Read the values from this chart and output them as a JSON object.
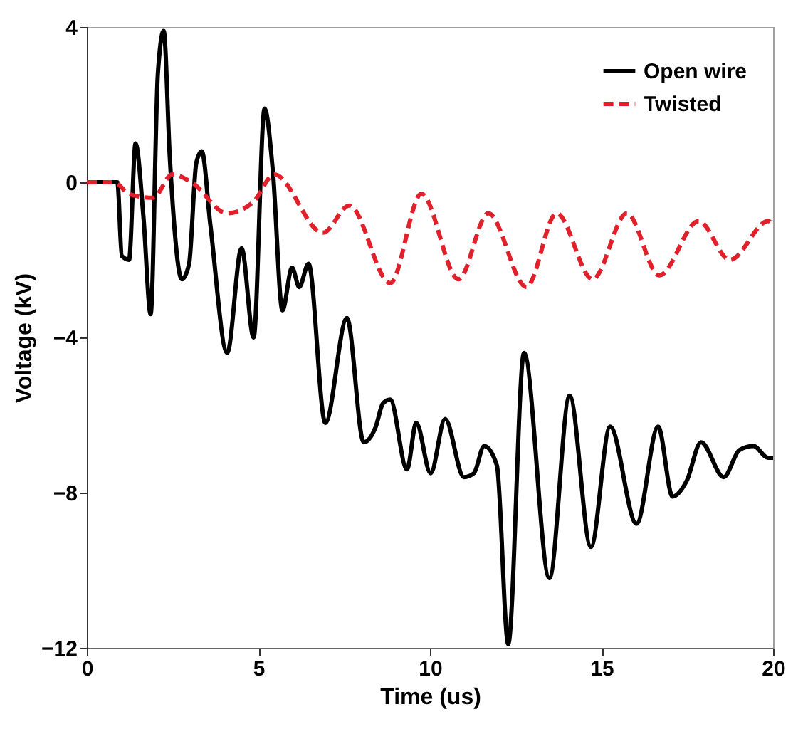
{
  "chart_data": {
    "type": "line",
    "xlabel": "Time (us)",
    "ylabel": "Voltage (kV)",
    "xlim": [
      0,
      20
    ],
    "xticks": [
      0,
      5,
      10,
      15,
      20
    ],
    "ylim": [
      -12,
      4
    ],
    "yticks": [
      -12,
      -8,
      -4,
      0,
      4
    ],
    "grid": false,
    "legend": "top right",
    "series": [
      {
        "name": "Open wire",
        "color": "#000000",
        "line_style": "solid",
        "x": [
          0,
          0.89,
          1.02,
          1.23,
          1.42,
          1.65,
          1.86,
          2.07,
          2.24,
          2.42,
          2.77,
          2.98,
          3.19,
          3.35,
          3.6,
          4.09,
          4.51,
          4.86,
          5.18,
          5.42,
          5.7,
          5.98,
          6.19,
          6.46,
          6.95,
          7.58,
          8.07,
          8.42,
          8.63,
          8.84,
          9.33,
          9.6,
          10.02,
          10.44,
          10.99,
          11.28,
          11.58,
          11.95,
          12.28,
          12.74,
          13.48,
          14.07,
          14.69,
          15.25,
          16.02,
          16.65,
          17.07,
          17.48,
          17.9,
          18.56,
          19.02,
          19.43,
          19.85,
          20
        ],
        "values": [
          0,
          0,
          -1.9,
          -2,
          1,
          -0.9,
          -3.4,
          2.8,
          3.9,
          0.6,
          -2.5,
          -2.1,
          0.5,
          0.8,
          -1.1,
          -4.4,
          -1.7,
          -4,
          1.9,
          0.3,
          -3.3,
          -2.2,
          -2.7,
          -2.1,
          -6.2,
          -3.5,
          -6.7,
          -6.3,
          -5.7,
          -5.6,
          -7.4,
          -6.2,
          -7.5,
          -6.1,
          -7.6,
          -7.5,
          -6.8,
          -7.3,
          -11.9,
          -4.4,
          -10.2,
          -5.5,
          -9.4,
          -6.3,
          -8.8,
          -6.3,
          -8.1,
          -7.7,
          -6.7,
          -7.6,
          -6.9,
          -6.8,
          -7.1,
          -7.1
        ]
      },
      {
        "name": "Twisted",
        "color": "#e0202a",
        "line_style": "dashed",
        "x": [
          0,
          0.8,
          1.23,
          1.93,
          2.49,
          3.05,
          4.09,
          4.86,
          5.46,
          6.88,
          7.65,
          8.84,
          9.75,
          10.83,
          11.7,
          12.81,
          13.69,
          14.74,
          15.74,
          16.68,
          17.83,
          18.74,
          19.86,
          20
        ],
        "values": [
          0,
          0,
          -0.3,
          -0.4,
          0.2,
          0,
          -0.8,
          -0.5,
          0.2,
          -1.3,
          -0.6,
          -2.6,
          -0.3,
          -2.5,
          -0.8,
          -2.7,
          -0.8,
          -2.5,
          -0.8,
          -2.4,
          -1,
          -2,
          -1,
          -1.1
        ]
      }
    ]
  }
}
